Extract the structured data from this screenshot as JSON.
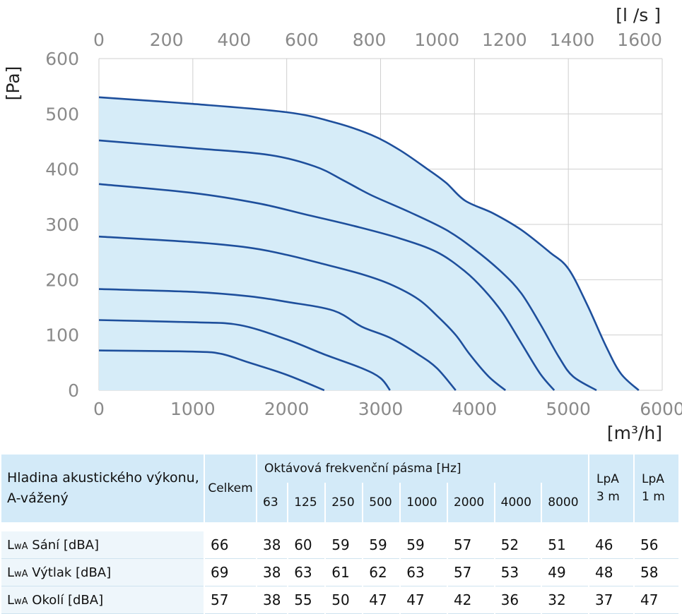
{
  "chart_data": {
    "type": "line",
    "x_label_bottom": "[m³/h]",
    "x_label_top": "[l /s ]",
    "y_label": "[Pa]",
    "xlim": [
      0,
      6000
    ],
    "ylim": [
      0,
      600
    ],
    "x_ticks": [
      "0",
      "1000",
      "2000",
      "3000",
      "4000",
      "5000",
      "6000"
    ],
    "x_top_ticks": [
      "0",
      "200",
      "400",
      "600",
      "800",
      "1000",
      "1200",
      "1400",
      "1600"
    ],
    "y_ticks": [
      "0",
      "100",
      "200",
      "300",
      "400",
      "500",
      "600"
    ],
    "grid": true,
    "fill_color": "#d6ecf8",
    "line_color": "#1e4f9c",
    "series": [
      {
        "points": [
          [
            0,
            530
          ],
          [
            1000,
            518
          ],
          [
            2000,
            503
          ],
          [
            2500,
            485
          ],
          [
            2900,
            462
          ],
          [
            3200,
            435
          ],
          [
            3500,
            400
          ],
          [
            3700,
            375
          ],
          [
            3900,
            343
          ],
          [
            4200,
            320
          ],
          [
            4500,
            290
          ],
          [
            4800,
            250
          ],
          [
            5000,
            220
          ],
          [
            5200,
            155
          ],
          [
            5400,
            80
          ],
          [
            5560,
            30
          ],
          [
            5750,
            0
          ]
        ]
      },
      {
        "points": [
          [
            0,
            452
          ],
          [
            1000,
            438
          ],
          [
            1800,
            426
          ],
          [
            2300,
            405
          ],
          [
            2600,
            380
          ],
          [
            2900,
            353
          ],
          [
            3300,
            323
          ],
          [
            3700,
            290
          ],
          [
            4000,
            255
          ],
          [
            4300,
            212
          ],
          [
            4500,
            175
          ],
          [
            4700,
            120
          ],
          [
            4900,
            60
          ],
          [
            5050,
            25
          ],
          [
            5300,
            0
          ]
        ]
      },
      {
        "points": [
          [
            0,
            373
          ],
          [
            1000,
            357
          ],
          [
            1700,
            338
          ],
          [
            2200,
            318
          ],
          [
            2700,
            298
          ],
          [
            3200,
            275
          ],
          [
            3600,
            250
          ],
          [
            3900,
            215
          ],
          [
            4100,
            182
          ],
          [
            4300,
            140
          ],
          [
            4500,
            85
          ],
          [
            4700,
            30
          ],
          [
            4850,
            0
          ]
        ]
      },
      {
        "points": [
          [
            0,
            278
          ],
          [
            1000,
            268
          ],
          [
            1600,
            258
          ],
          [
            2000,
            245
          ],
          [
            2400,
            228
          ],
          [
            2800,
            210
          ],
          [
            3100,
            192
          ],
          [
            3400,
            165
          ],
          [
            3600,
            135
          ],
          [
            3800,
            100
          ],
          [
            3950,
            65
          ],
          [
            4150,
            25
          ],
          [
            4330,
            0
          ]
        ]
      },
      {
        "points": [
          [
            0,
            183
          ],
          [
            1000,
            178
          ],
          [
            1600,
            170
          ],
          [
            2000,
            160
          ],
          [
            2500,
            144
          ],
          [
            2800,
            115
          ],
          [
            3100,
            95
          ],
          [
            3400,
            65
          ],
          [
            3600,
            40
          ],
          [
            3800,
            0
          ]
        ]
      },
      {
        "points": [
          [
            0,
            127
          ],
          [
            1000,
            123
          ],
          [
            1500,
            118
          ],
          [
            2000,
            92
          ],
          [
            2400,
            65
          ],
          [
            2800,
            40
          ],
          [
            3000,
            22
          ],
          [
            3100,
            0
          ]
        ]
      },
      {
        "points": [
          [
            0,
            72
          ],
          [
            1000,
            70
          ],
          [
            1300,
            66
          ],
          [
            1600,
            50
          ],
          [
            2000,
            28
          ],
          [
            2400,
            0
          ]
        ]
      }
    ]
  },
  "table": {
    "header_label": "Hladina akustického výkonu, A-vážený",
    "header_total": "Celkem",
    "header_octave": "Oktávová frekvenční pásma [Hz]",
    "frequencies": [
      "63",
      "125",
      "250",
      "500",
      "1000",
      "2000",
      "4000",
      "8000"
    ],
    "header_lpa3_line1": "LpA",
    "header_lpa3_line2": "3 m",
    "header_lpa1_line1": "LpA",
    "header_lpa1_line2": "1 m",
    "rows": [
      {
        "label": "Sání [dBA]",
        "values": [
          "66",
          "38",
          "60",
          "59",
          "59",
          "59",
          "57",
          "52",
          "51",
          "46",
          "56"
        ]
      },
      {
        "label": "Výtlak [dBA]",
        "values": [
          "69",
          "38",
          "63",
          "61",
          "62",
          "63",
          "57",
          "53",
          "49",
          "48",
          "58"
        ]
      },
      {
        "label": "Okolí [dBA]",
        "values": [
          "57",
          "38",
          "55",
          "50",
          "47",
          "47",
          "42",
          "36",
          "32",
          "37",
          "47"
        ]
      }
    ],
    "row_prefix_main": "L",
    "row_prefix_sub": "wA"
  }
}
